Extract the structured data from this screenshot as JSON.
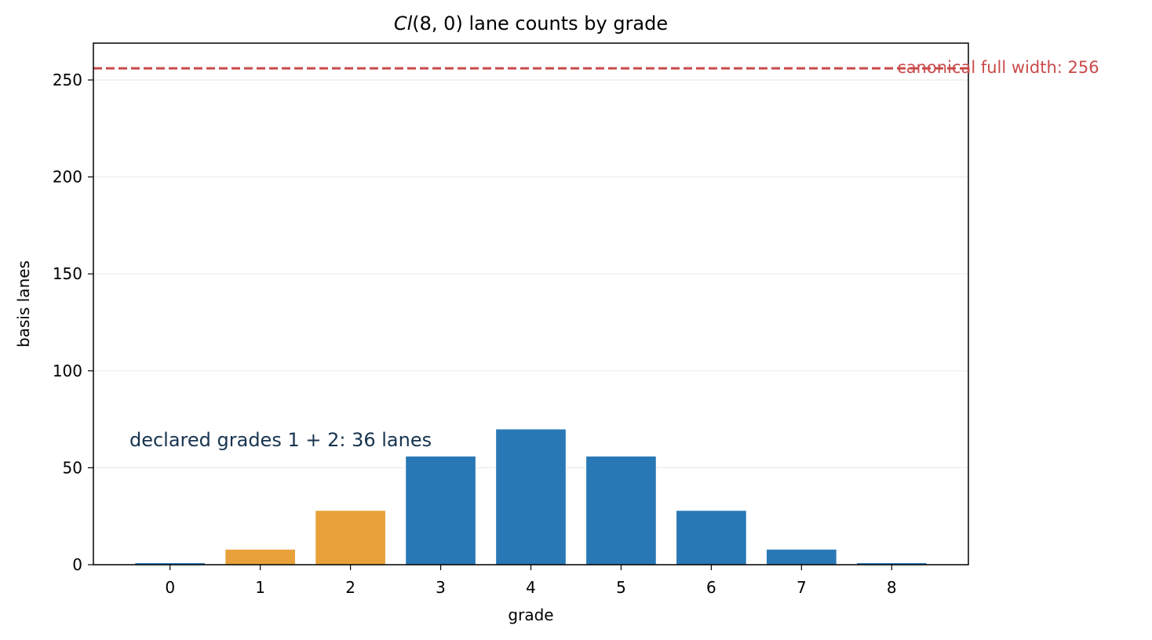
{
  "chart_data": {
    "type": "bar",
    "title_prefix": "Cl",
    "title_args": "(8, 0)",
    "title_rest": " lane counts by grade",
    "xlabel": "grade",
    "ylabel": "basis lanes",
    "categories": [
      "0",
      "1",
      "2",
      "3",
      "4",
      "5",
      "6",
      "7",
      "8"
    ],
    "values": [
      1,
      8,
      28,
      56,
      70,
      56,
      28,
      8,
      1
    ],
    "highlighted_categories": [
      "1",
      "2"
    ],
    "ylim": [
      0,
      269
    ],
    "yticks": [
      0,
      50,
      100,
      150,
      200,
      250
    ],
    "grid": "horizontal",
    "colors": {
      "bar": "#2878b5",
      "highlight": "#e8a13a",
      "reference": "#c94a4a",
      "annotation": "#17344f",
      "grid": "#ebebeb"
    },
    "reference_line": {
      "value": 256,
      "label": "canonical full width: 256"
    },
    "annotation": {
      "text": "declared grades 1 + 2: 36 lanes",
      "x": -0.45,
      "y": 61
    }
  }
}
